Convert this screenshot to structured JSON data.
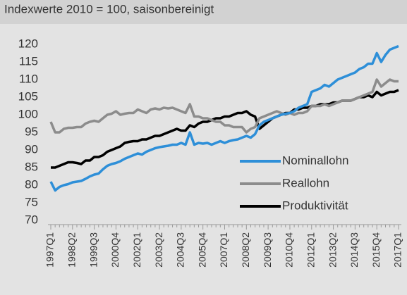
{
  "chart_data": {
    "type": "line",
    "subtitle": "Indexwerte 2010 = 100, saisonbereinigt",
    "categories": [
      "1997Q1",
      null,
      null,
      null,
      null,
      "1998Q2",
      null,
      null,
      null,
      null,
      "1999Q3",
      null,
      null,
      null,
      null,
      "2000Q4",
      null,
      null,
      null,
      null,
      "2002Q1",
      null,
      null,
      null,
      null,
      "2003Q2",
      null,
      null,
      null,
      null,
      "2004Q3",
      null,
      null,
      null,
      null,
      "2005Q4",
      null,
      null,
      null,
      null,
      "2007Q1",
      null,
      null,
      null,
      null,
      "2008Q2",
      null,
      null,
      null,
      null,
      "2009Q3",
      null,
      null,
      null,
      null,
      "2010Q4",
      null,
      null,
      null,
      null,
      "2012Q1",
      null,
      null,
      null,
      null,
      "2013Q2",
      null,
      null,
      null,
      null,
      "2014Q3",
      null,
      null,
      null,
      null,
      "2015Q4",
      null,
      null,
      null,
      null,
      "2017Q1"
    ],
    "series": [
      {
        "name": "Nominallohn",
        "color": "#2e8fd8",
        "values": [
          81,
          78.5,
          79.5,
          80,
          80.3,
          80.8,
          81,
          81.2,
          81.8,
          82.5,
          83,
          83.3,
          84.5,
          85.5,
          86,
          86.3,
          86.8,
          87.5,
          88,
          88.5,
          89,
          88.7,
          89.5,
          90,
          90.5,
          90.8,
          91,
          91.2,
          91.5,
          91.5,
          92,
          91.5,
          95,
          91.5,
          92,
          91.8,
          92,
          91.5,
          92,
          92.5,
          92,
          92.5,
          92.8,
          93,
          93.5,
          94,
          93.5,
          94.5,
          97,
          98,
          98.5,
          99,
          99.5,
          100,
          100.3,
          100.5,
          101,
          102,
          102.5,
          103,
          106.5,
          107,
          107.5,
          108.5,
          108,
          109,
          110,
          110.5,
          111,
          111.5,
          112,
          113,
          113.5,
          114.5,
          114.5,
          117.5,
          115,
          117,
          118.5,
          119,
          119.5
        ]
      },
      {
        "name": "Reallohn",
        "color": "#8c8c8c",
        "values": [
          98,
          95,
          95,
          96,
          96.3,
          96.3,
          96.5,
          96.5,
          97.5,
          98,
          98.3,
          98,
          99,
          100,
          100.3,
          101,
          100,
          100.3,
          100.5,
          100.5,
          101.5,
          101,
          100.5,
          101.5,
          101.8,
          101.5,
          102,
          101.8,
          102,
          101.5,
          101,
          100.5,
          103,
          99.5,
          99.5,
          99,
          99,
          98.5,
          98,
          98,
          97,
          97,
          96.5,
          96.5,
          96.5,
          95,
          96,
          96.5,
          99,
          99.5,
          100,
          100.5,
          101,
          100.5,
          100,
          100.5,
          100,
          100.5,
          100.5,
          101,
          102.5,
          102.5,
          102.5,
          103,
          102.5,
          103,
          103.5,
          104,
          104,
          104,
          104.5,
          105,
          105.5,
          106,
          106.5,
          110,
          108,
          109,
          110,
          109.5,
          109.5
        ]
      },
      {
        "name": "Produktivität",
        "color": "#000000",
        "values": [
          85,
          85,
          85.5,
          86,
          86.5,
          86.5,
          86.3,
          86,
          87,
          87,
          88,
          88,
          88.5,
          89.5,
          90,
          90.5,
          91,
          92,
          92.3,
          92.5,
          92.5,
          93,
          93,
          93.5,
          94,
          94,
          94.5,
          95,
          95.5,
          96,
          95.5,
          95.5,
          97,
          96.5,
          97.5,
          98,
          98,
          98.5,
          99,
          99,
          99.5,
          99.5,
          100,
          100.5,
          100.5,
          101,
          100,
          99.5,
          96,
          97,
          98,
          99,
          99.5,
          100,
          100.5,
          100.5,
          101.5,
          101.5,
          102,
          102,
          102.5,
          102.5,
          103,
          103,
          103,
          103.5,
          103.5,
          104,
          104,
          104,
          104.5,
          105,
          105,
          105.5,
          105,
          106.5,
          105.5,
          106,
          106.5,
          106.5,
          107
        ]
      }
    ],
    "ylim": [
      70,
      120
    ],
    "yticks": [
      70,
      75,
      80,
      85,
      90,
      95,
      100,
      105,
      110,
      115,
      120
    ],
    "grid": false,
    "legend": "lower right"
  }
}
